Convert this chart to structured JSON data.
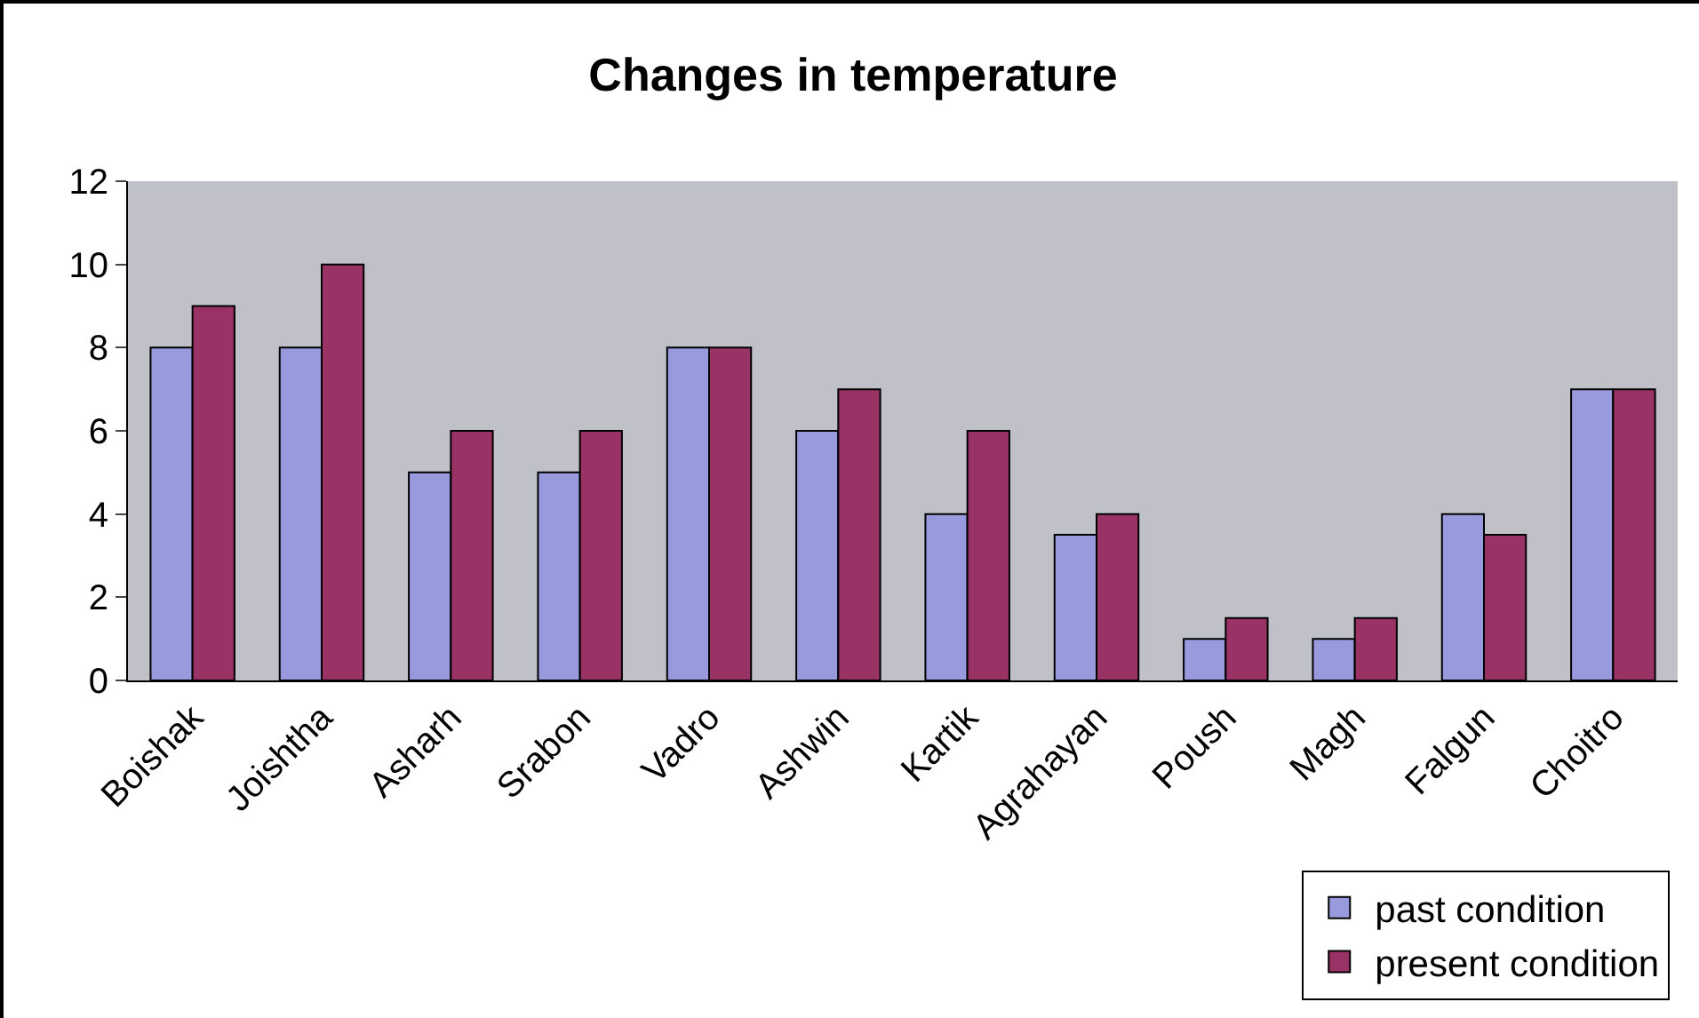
{
  "chart_data": {
    "type": "bar",
    "title": "Changes in temperature",
    "categories": [
      "Boishak",
      "Joishtha",
      "Asharh",
      "Srabon",
      "Vadro",
      "Ashwin",
      "Kartik",
      "Agrahayan",
      "Poush",
      "Magh",
      "Falgun",
      "Choitro"
    ],
    "series": [
      {
        "name": "past condition",
        "color": "#9999dd",
        "values": [
          8,
          8,
          5,
          5,
          8,
          6,
          4,
          3.5,
          1,
          1,
          4,
          7
        ]
      },
      {
        "name": "present condition",
        "color": "#993366",
        "values": [
          9,
          10,
          6,
          6,
          8,
          7,
          6,
          4,
          1.5,
          1.5,
          3.5,
          7
        ]
      }
    ],
    "ylim": [
      0,
      12
    ],
    "yticks": [
      0,
      2,
      4,
      6,
      8,
      10,
      12
    ],
    "grid": false,
    "legend": "bottom right"
  }
}
